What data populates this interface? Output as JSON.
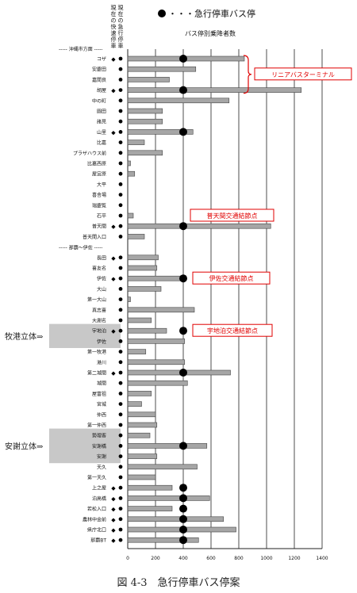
{
  "chart_data": {
    "type": "bar",
    "title": "バス停別乗降者数",
    "legend_label": "・・・急行停車バス停",
    "header_text_existing": "現在の快速停車",
    "header_text_current": "現在の急行停車",
    "section_labels": [
      {
        "before_index": 0,
        "text": "----- 沖縄市方面 -----"
      },
      {
        "before_index": 18,
        "text": "----- 那覇～伊佐 -----"
      }
    ],
    "categories": [
      "コザ",
      "安慶田",
      "嘉間良",
      "胡屋",
      "中の町",
      "園田",
      "諸見",
      "山里",
      "比嘉",
      "プラザハウス前",
      "比嘉西原",
      "屋宜原",
      "大平",
      "喜舎場",
      "瑞慶覧",
      "石平",
      "普天間",
      "普天間入口",
      "長田",
      "喜友名",
      "伊佐",
      "大山",
      "第一大山",
      "真志喜",
      "大謝名",
      "宇地泊",
      "伊佐",
      "第一牧港",
      "港川",
      "第二城間",
      "城間",
      "屋富祖",
      "宮城",
      "仲西",
      "第一仲西",
      "勢理客",
      "安謝橋",
      "安謝",
      "天久",
      "第一天久",
      "上之屋",
      "泊高橋",
      "若松入口",
      "農林中金前",
      "県庁北口",
      "那覇BT"
    ],
    "values": [
      840,
      490,
      300,
      1250,
      730,
      250,
      250,
      470,
      120,
      250,
      20,
      50,
      0,
      0,
      0,
      40,
      1030,
      120,
      220,
      210,
      410,
      240,
      20,
      480,
      170,
      280,
      410,
      130,
      410,
      740,
      430,
      170,
      100,
      200,
      210,
      160,
      570,
      210,
      500,
      200,
      320,
      590,
      320,
      690,
      780,
      510
    ],
    "express_stop": [
      true,
      false,
      false,
      true,
      false,
      false,
      false,
      true,
      false,
      false,
      false,
      false,
      false,
      false,
      false,
      false,
      true,
      false,
      false,
      false,
      true,
      false,
      false,
      false,
      false,
      true,
      false,
      false,
      false,
      true,
      false,
      false,
      false,
      false,
      false,
      false,
      true,
      false,
      false,
      false,
      true,
      true,
      true,
      true,
      true,
      true
    ],
    "existing_marks": [
      true,
      false,
      false,
      true,
      false,
      false,
      false,
      true,
      false,
      false,
      false,
      false,
      false,
      false,
      false,
      false,
      true,
      false,
      true,
      false,
      true,
      false,
      false,
      false,
      false,
      true,
      false,
      false,
      false,
      true,
      false,
      false,
      false,
      false,
      false,
      false,
      false,
      false,
      false,
      false,
      true,
      true,
      true,
      true,
      true,
      true
    ],
    "current_marks": [
      true,
      true,
      true,
      true,
      true,
      true,
      true,
      true,
      true,
      true,
      true,
      true,
      true,
      true,
      true,
      true,
      true,
      true,
      true,
      true,
      true,
      true,
      true,
      true,
      true,
      true,
      true,
      true,
      true,
      true,
      true,
      true,
      true,
      true,
      true,
      true,
      true,
      true,
      true,
      true,
      true,
      true,
      true,
      true,
      true,
      true
    ],
    "xlim": [
      0,
      1400
    ],
    "xticks": [
      0,
      200,
      400,
      600,
      800,
      1000,
      1200,
      1400
    ],
    "express_marker_value": 400,
    "grid": true,
    "annotations": [
      {
        "text": "リニアバスターミナル",
        "group_from": 0,
        "group_to": 3
      },
      {
        "text": "普天間交通結節点",
        "row_index": 15
      },
      {
        "text": "伊佐交通結節点",
        "row_index": 20
      },
      {
        "text": "宇地泊交通結節点",
        "row_index": 25
      }
    ],
    "side_labels": [
      {
        "text": "牧港立体⇒",
        "row_from": 25,
        "row_to": 26
      },
      {
        "text": "安謝立体⇒",
        "row_from": 35,
        "row_to": 37
      }
    ]
  },
  "caption": "図 4-3　急行停車バス停案",
  "colors": {
    "bar": "#a6a6a6",
    "bar_stroke": "#444444",
    "annotation": "#e00000",
    "highlight": "#c8c8c8",
    "grid": "#222222",
    "dot": "#000000"
  }
}
